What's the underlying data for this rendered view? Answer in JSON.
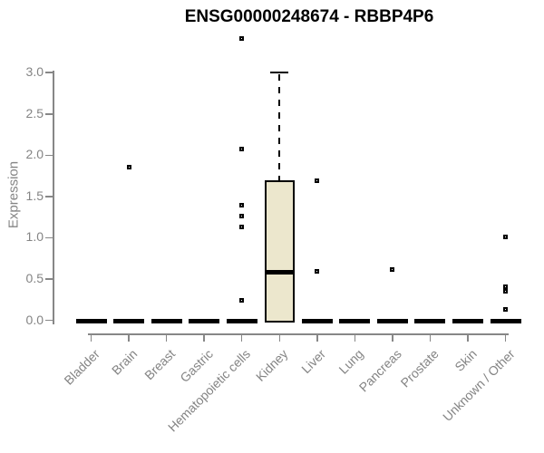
{
  "chart_data": {
    "type": "box",
    "title": "ENSG00000248674 - RBBP4P6",
    "ylabel": "Expression",
    "xlabel": "",
    "ylim": [
      0.0,
      3.0
    ],
    "yticks": [
      0.0,
      0.5,
      1.0,
      1.5,
      2.0,
      2.5,
      3.0
    ],
    "grid": false,
    "legend": "none",
    "categories": [
      "Bladder",
      "Brain",
      "Breast",
      "Gastric",
      "Hematopoietic cells",
      "Kidney",
      "Liver",
      "Lung",
      "Pancreas",
      "Prostate",
      "Skin",
      "Unknown / Other"
    ],
    "series": [
      {
        "category": "Bladder",
        "q1": 0,
        "median": 0,
        "q3": 0,
        "whisker_low": 0,
        "whisker_high": 0,
        "outliers": []
      },
      {
        "category": "Brain",
        "q1": 0,
        "median": 0,
        "q3": 0,
        "whisker_low": 0,
        "whisker_high": 0,
        "outliers": [
          1.86
        ]
      },
      {
        "category": "Breast",
        "q1": 0,
        "median": 0,
        "q3": 0,
        "whisker_low": 0,
        "whisker_high": 0,
        "outliers": []
      },
      {
        "category": "Gastric",
        "q1": 0,
        "median": 0,
        "q3": 0,
        "whisker_low": 0,
        "whisker_high": 0,
        "outliers": []
      },
      {
        "category": "Hematopoietic cells",
        "q1": 0,
        "median": 0,
        "q3": 0,
        "whisker_low": 0,
        "whisker_high": 0,
        "outliers": [
          3.41,
          2.08,
          1.39,
          1.26,
          1.13,
          0.24
        ]
      },
      {
        "category": "Kidney",
        "q1": 0,
        "median": 0.58,
        "q3": 1.7,
        "whisker_low": 0,
        "whisker_high": 3.0,
        "outliers": []
      },
      {
        "category": "Liver",
        "q1": 0,
        "median": 0,
        "q3": 0,
        "whisker_low": 0,
        "whisker_high": 0,
        "outliers": [
          1.69,
          0.59
        ]
      },
      {
        "category": "Lung",
        "q1": 0,
        "median": 0,
        "q3": 0,
        "whisker_low": 0,
        "whisker_high": 0,
        "outliers": []
      },
      {
        "category": "Pancreas",
        "q1": 0,
        "median": 0,
        "q3": 0,
        "whisker_low": 0,
        "whisker_high": 0,
        "outliers": [
          0.61
        ]
      },
      {
        "category": "Prostate",
        "q1": 0,
        "median": 0,
        "q3": 0,
        "whisker_low": 0,
        "whisker_high": 0,
        "outliers": []
      },
      {
        "category": "Skin",
        "q1": 0,
        "median": 0,
        "q3": 0,
        "whisker_low": 0,
        "whisker_high": 0,
        "outliers": []
      },
      {
        "category": "Unknown / Other",
        "q1": 0,
        "median": 0,
        "q3": 0,
        "whisker_low": 0,
        "whisker_high": 0,
        "outliers": [
          1.01,
          0.41,
          0.35,
          0.13
        ]
      }
    ],
    "colors": {
      "box_fill": "#ECE7CD",
      "box_border": "#000000",
      "median": "#000000",
      "outlier": "#000000",
      "axis": "#878787",
      "tick_label": "#848484",
      "title": "#000000",
      "background": "#FFFFFF"
    }
  }
}
